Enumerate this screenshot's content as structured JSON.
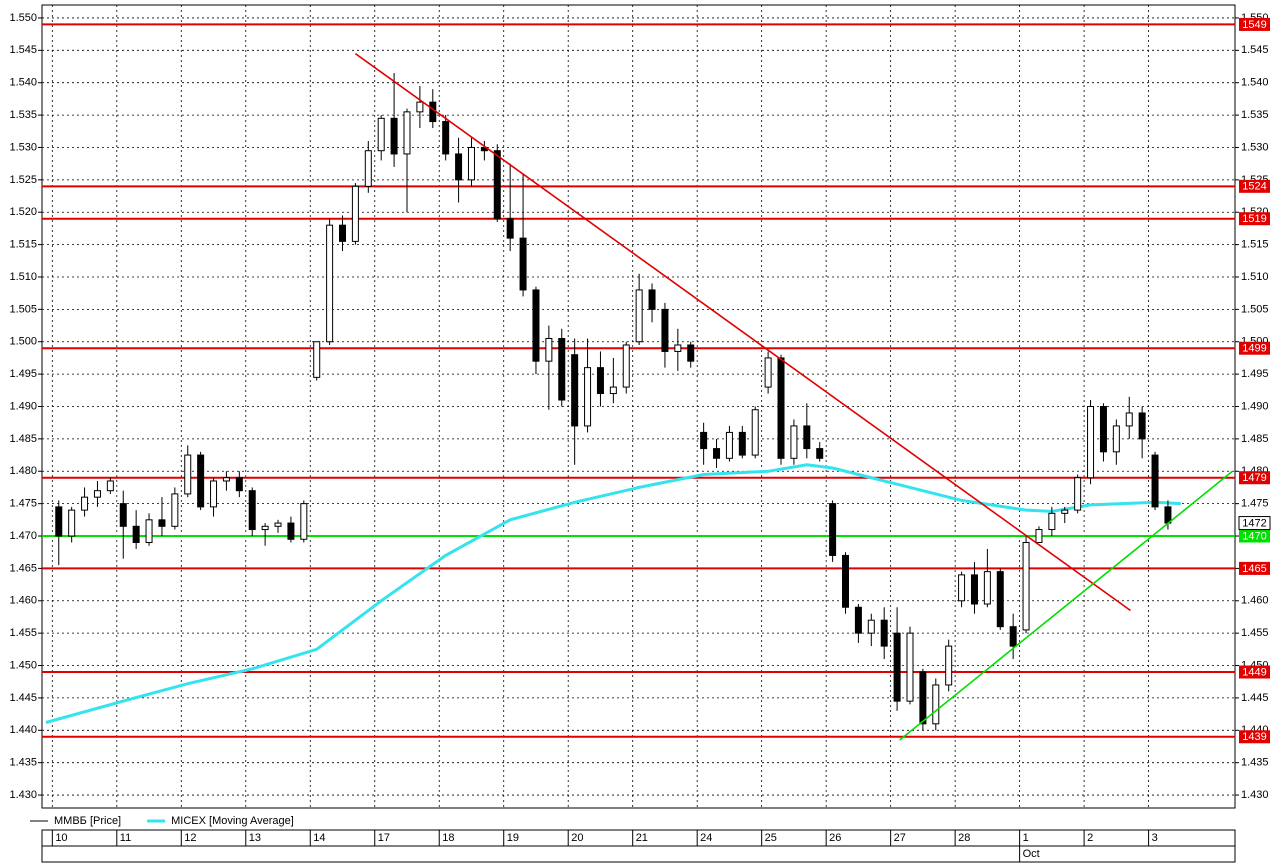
{
  "chart_data": {
    "type": "candlestick",
    "grid": true,
    "xlim": [
      -1.3,
      91.2
    ],
    "ylim": [
      1.428,
      1.552
    ],
    "yticks": [
      {
        "value": 1.43,
        "label": "1.430"
      },
      {
        "value": 1.435,
        "label": "1.435"
      },
      {
        "value": 1.44,
        "label": "1.440"
      },
      {
        "value": 1.445,
        "label": "1.445"
      },
      {
        "value": 1.45,
        "label": "1.450"
      },
      {
        "value": 1.455,
        "label": "1.455"
      },
      {
        "value": 1.46,
        "label": "1.460"
      },
      {
        "value": 1.465,
        "label": "1.465"
      },
      {
        "value": 1.47,
        "label": "1.470"
      },
      {
        "value": 1.475,
        "label": "1.475"
      },
      {
        "value": 1.48,
        "label": "1.480"
      },
      {
        "value": 1.485,
        "label": "1.485"
      },
      {
        "value": 1.49,
        "label": "1.490"
      },
      {
        "value": 1.495,
        "label": "1.495"
      },
      {
        "value": 1.5,
        "label": "1.500"
      },
      {
        "value": 1.505,
        "label": "1.505"
      },
      {
        "value": 1.51,
        "label": "1.510"
      },
      {
        "value": 1.515,
        "label": "1.515"
      },
      {
        "value": 1.52,
        "label": "1.520"
      },
      {
        "value": 1.525,
        "label": "1.525"
      },
      {
        "value": 1.53,
        "label": "1.530"
      },
      {
        "value": 1.535,
        "label": "1.535"
      },
      {
        "value": 1.54,
        "label": "1.540"
      },
      {
        "value": 1.545,
        "label": "1.545"
      },
      {
        "value": 1.55,
        "label": "1.550"
      }
    ],
    "xticks": [
      {
        "value": -0.5,
        "label": "10"
      },
      {
        "value": 4.5,
        "label": "11"
      },
      {
        "value": 9.5,
        "label": "12"
      },
      {
        "value": 14.5,
        "label": "13"
      },
      {
        "value": 19.5,
        "label": "14"
      },
      {
        "value": 24.5,
        "label": "17"
      },
      {
        "value": 29.5,
        "label": "18"
      },
      {
        "value": 34.5,
        "label": "19"
      },
      {
        "value": 39.5,
        "label": "20"
      },
      {
        "value": 44.5,
        "label": "21"
      },
      {
        "value": 49.5,
        "label": "24"
      },
      {
        "value": 54.5,
        "label": "25"
      },
      {
        "value": 59.5,
        "label": "26"
      },
      {
        "value": 64.5,
        "label": "27"
      },
      {
        "value": 69.5,
        "label": "28"
      },
      {
        "value": 74.5,
        "label": "1"
      },
      {
        "value": 79.5,
        "label": "2"
      },
      {
        "value": 84.5,
        "label": "3"
      }
    ],
    "xticks_secondary": [
      {
        "value": 74.5,
        "label": "Oct"
      }
    ],
    "series": [
      {
        "name": "ММВБ [Price]",
        "type": "candlestick",
        "color": "#000000",
        "x": [
          0,
          1,
          2,
          3,
          4,
          5,
          6,
          7,
          8,
          9,
          10,
          11,
          12,
          13,
          14,
          15,
          16,
          17,
          18,
          19,
          20,
          21,
          22,
          23,
          24,
          25,
          26,
          27,
          28,
          29,
          30,
          31,
          32,
          33,
          34,
          35,
          36,
          37,
          38,
          39,
          40,
          41,
          42,
          43,
          44,
          45,
          46,
          47,
          48,
          49,
          50,
          51,
          52,
          53,
          54,
          55,
          56,
          57,
          58,
          59,
          60,
          61,
          62,
          63,
          64,
          65,
          66,
          67,
          68,
          69,
          70,
          71,
          72,
          73,
          74,
          75,
          76,
          77,
          78,
          79,
          80,
          81,
          82,
          83,
          84,
          85,
          86
        ],
        "open": [
          1.4745,
          1.47,
          1.474,
          1.476,
          1.477,
          1.475,
          1.4715,
          1.469,
          1.4725,
          1.4715,
          1.4765,
          1.4825,
          1.4745,
          1.4785,
          1.479,
          1.477,
          1.471,
          1.4715,
          1.472,
          1.4695,
          1.4945,
          1.5,
          1.518,
          1.5155,
          1.524,
          1.5295,
          1.5345,
          1.529,
          1.5355,
          1.537,
          1.534,
          1.529,
          1.525,
          1.53,
          1.5295,
          1.519,
          1.516,
          1.508,
          1.497,
          1.5005,
          1.498,
          1.487,
          1.496,
          1.492,
          1.493,
          1.5,
          1.508,
          1.505,
          1.4985,
          1.4995,
          1.486,
          1.4835,
          1.482,
          1.486,
          1.4825,
          1.493,
          1.4975,
          1.482,
          1.487,
          1.4835,
          1.475,
          1.467,
          1.459,
          1.455,
          1.457,
          1.455,
          1.4445,
          1.449,
          1.441,
          1.447,
          1.46,
          1.464,
          1.4595,
          1.4645,
          1.456,
          1.4555,
          1.469,
          1.471,
          1.4735,
          1.474,
          1.479,
          1.49,
          1.483,
          1.487,
          1.489,
          1.4825,
          1.4745
        ],
        "high": [
          1.4755,
          1.4745,
          1.4775,
          1.4785,
          1.479,
          1.477,
          1.474,
          1.4735,
          1.476,
          1.4775,
          1.484,
          1.483,
          1.479,
          1.48,
          1.48,
          1.4775,
          1.472,
          1.4725,
          1.473,
          1.4755,
          1.5,
          1.519,
          1.5195,
          1.5245,
          1.531,
          1.535,
          1.5415,
          1.536,
          1.5395,
          1.539,
          1.535,
          1.5315,
          1.5315,
          1.531,
          1.5305,
          1.5275,
          1.526,
          1.5085,
          1.5025,
          1.502,
          1.5005,
          1.5005,
          1.4985,
          1.4975,
          1.5,
          1.5105,
          1.509,
          1.506,
          1.502,
          1.5,
          1.4875,
          1.485,
          1.487,
          1.487,
          1.49,
          1.4985,
          1.498,
          1.488,
          1.4905,
          1.4845,
          1.4755,
          1.4675,
          1.4595,
          1.458,
          1.459,
          1.459,
          1.456,
          1.4495,
          1.448,
          1.454,
          1.4645,
          1.466,
          1.468,
          1.465,
          1.458,
          1.47,
          1.4715,
          1.4745,
          1.4745,
          1.4795,
          1.491,
          1.4905,
          1.488,
          1.4915,
          1.49,
          1.483,
          1.4755
        ],
        "low": [
          1.4655,
          1.469,
          1.473,
          1.4745,
          1.4765,
          1.4665,
          1.468,
          1.4685,
          1.47,
          1.471,
          1.476,
          1.474,
          1.473,
          1.477,
          1.476,
          1.47,
          1.4685,
          1.4705,
          1.469,
          1.469,
          1.494,
          1.4995,
          1.514,
          1.515,
          1.523,
          1.528,
          1.527,
          1.52,
          1.533,
          1.533,
          1.528,
          1.5215,
          1.524,
          1.528,
          1.5185,
          1.514,
          1.507,
          1.495,
          1.4895,
          1.49,
          1.481,
          1.486,
          1.49,
          1.4905,
          1.492,
          1.4995,
          1.503,
          1.496,
          1.4955,
          1.496,
          1.481,
          1.4805,
          1.4815,
          1.482,
          1.482,
          1.492,
          1.481,
          1.481,
          1.482,
          1.4815,
          1.466,
          1.458,
          1.4535,
          1.453,
          1.451,
          1.443,
          1.444,
          1.44,
          1.44,
          1.446,
          1.459,
          1.458,
          1.459,
          1.4555,
          1.451,
          1.455,
          1.469,
          1.47,
          1.472,
          1.4735,
          1.478,
          1.4815,
          1.481,
          1.485,
          1.482,
          1.474,
          1.471
        ],
        "close": [
          1.47,
          1.474,
          1.476,
          1.477,
          1.4785,
          1.4715,
          1.469,
          1.4725,
          1.4715,
          1.4765,
          1.4825,
          1.4745,
          1.4785,
          1.479,
          1.477,
          1.471,
          1.4715,
          1.472,
          1.4695,
          1.475,
          1.5,
          1.518,
          1.5155,
          1.524,
          1.5295,
          1.5345,
          1.529,
          1.5355,
          1.537,
          1.534,
          1.529,
          1.525,
          1.53,
          1.5295,
          1.519,
          1.516,
          1.508,
          1.497,
          1.5005,
          1.491,
          1.487,
          1.496,
          1.492,
          1.493,
          1.4995,
          1.508,
          1.505,
          1.4985,
          1.4995,
          1.497,
          1.4835,
          1.482,
          1.486,
          1.4825,
          1.4895,
          1.4975,
          1.482,
          1.487,
          1.4835,
          1.482,
          1.467,
          1.459,
          1.455,
          1.457,
          1.453,
          1.4445,
          1.455,
          1.441,
          1.447,
          1.453,
          1.464,
          1.4595,
          1.4645,
          1.456,
          1.453,
          1.469,
          1.471,
          1.4735,
          1.474,
          1.479,
          1.49,
          1.483,
          1.487,
          1.489,
          1.485,
          1.4745,
          1.472
        ]
      },
      {
        "name": "MICEX [Moving Average]",
        "type": "line",
        "color": "#33e3ee",
        "x": [
          -1,
          5,
          10,
          15,
          20,
          25,
          30,
          35,
          40,
          45,
          50,
          55,
          58,
          60,
          65,
          70,
          75,
          77,
          80,
          85,
          87
        ],
        "values": [
          1.4412,
          1.4445,
          1.4472,
          1.4495,
          1.4525,
          1.46,
          1.467,
          1.4725,
          1.4752,
          1.4775,
          1.4795,
          1.48,
          1.481,
          1.4805,
          1.478,
          1.4755,
          1.474,
          1.4738,
          1.4748,
          1.4752,
          1.475
        ]
      }
    ],
    "levels": [
      {
        "value": 1.549,
        "label": "1549",
        "color": "#e00000"
      },
      {
        "value": 1.524,
        "label": "1524",
        "color": "#e00000"
      },
      {
        "value": 1.519,
        "label": "1519",
        "color": "#e00000"
      },
      {
        "value": 1.499,
        "label": "1499",
        "color": "#e00000"
      },
      {
        "value": 1.479,
        "label": "1479",
        "color": "#e00000"
      },
      {
        "value": 1.47,
        "label": "1470",
        "color": "#00e000"
      },
      {
        "value": 1.465,
        "label": "1465",
        "color": "#e00000"
      },
      {
        "value": 1.449,
        "label": "1449",
        "color": "#e00000"
      },
      {
        "value": 1.439,
        "label": "1439",
        "color": "#e00000"
      }
    ],
    "last_price": {
      "value": 1.472,
      "label": "1472"
    },
    "trendlines": [
      {
        "color": "#e00000",
        "x": [
          23,
          83.1
        ],
        "values": [
          1.5445,
          1.4585
        ]
      },
      {
        "color": "#00e000",
        "x": [
          65.2,
          91
        ],
        "values": [
          1.4385,
          1.48
        ]
      }
    ]
  }
}
